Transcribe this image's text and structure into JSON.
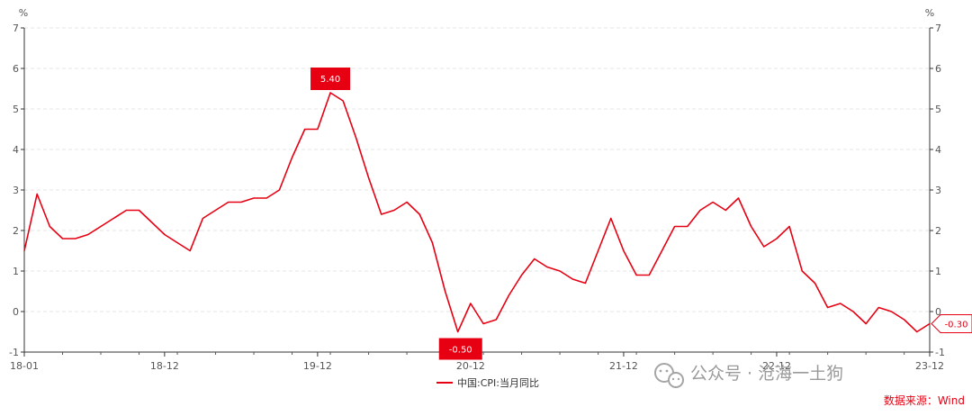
{
  "chart_data": {
    "type": "line",
    "units_left": "%",
    "units_right": "%",
    "ylim": [
      -1,
      7
    ],
    "yticks": [
      "-1",
      "0",
      "1",
      "2",
      "3",
      "4",
      "5",
      "6",
      "7"
    ],
    "x_tick_labels": [
      "18-01",
      "18-12",
      "19-12",
      "20-12",
      "21-12",
      "22-12",
      "23-12"
    ],
    "x_tick_months": [
      "2018-01",
      "2018-12",
      "2019-12",
      "2020-12",
      "2021-12",
      "2022-12",
      "2023-12"
    ],
    "grid": true,
    "legend_position": "bottom-center",
    "series": [
      {
        "name": "中国:CPI:当月同比",
        "color": "#e60012",
        "x": [
          "2018-01",
          "2018-02",
          "2018-03",
          "2018-04",
          "2018-05",
          "2018-06",
          "2018-07",
          "2018-08",
          "2018-09",
          "2018-10",
          "2018-11",
          "2018-12",
          "2019-01",
          "2019-02",
          "2019-03",
          "2019-04",
          "2019-05",
          "2019-06",
          "2019-07",
          "2019-08",
          "2019-09",
          "2019-10",
          "2019-11",
          "2019-12",
          "2020-01",
          "2020-02",
          "2020-03",
          "2020-04",
          "2020-05",
          "2020-06",
          "2020-07",
          "2020-08",
          "2020-09",
          "2020-10",
          "2020-11",
          "2020-12",
          "2021-01",
          "2021-02",
          "2021-03",
          "2021-04",
          "2021-05",
          "2021-06",
          "2021-07",
          "2021-08",
          "2021-09",
          "2021-10",
          "2021-11",
          "2021-12",
          "2022-01",
          "2022-02",
          "2022-03",
          "2022-04",
          "2022-05",
          "2022-06",
          "2022-07",
          "2022-08",
          "2022-09",
          "2022-10",
          "2022-11",
          "2022-12",
          "2023-01",
          "2023-02",
          "2023-03",
          "2023-04",
          "2023-05",
          "2023-06",
          "2023-07",
          "2023-08",
          "2023-09",
          "2023-10",
          "2023-11",
          "2023-12"
        ],
        "values": [
          1.5,
          2.9,
          2.1,
          1.8,
          1.8,
          1.9,
          2.1,
          2.3,
          2.5,
          2.5,
          2.2,
          1.9,
          1.7,
          1.5,
          2.3,
          2.5,
          2.7,
          2.7,
          2.8,
          2.8,
          3.0,
          3.8,
          4.5,
          4.5,
          5.4,
          5.2,
          4.3,
          3.3,
          2.4,
          2.5,
          2.7,
          2.4,
          1.7,
          0.5,
          -0.5,
          0.2,
          -0.3,
          -0.2,
          0.4,
          0.9,
          1.3,
          1.1,
          1.0,
          0.8,
          0.7,
          1.5,
          2.3,
          1.5,
          0.9,
          0.9,
          1.5,
          2.1,
          2.1,
          2.5,
          2.7,
          2.5,
          2.8,
          2.1,
          1.6,
          1.8,
          2.1,
          1.0,
          0.7,
          0.1,
          0.2,
          0.0,
          -0.3,
          0.1,
          0.0,
          -0.2,
          -0.5,
          -0.3
        ]
      }
    ],
    "annotations": [
      {
        "x": "2020-01",
        "label": "5.40"
      },
      {
        "x": "2020-11",
        "label": "-0.50"
      },
      {
        "x": "2023-12",
        "label": "-0.30"
      }
    ]
  },
  "footer": {
    "watermark": "公众号 · 沧海一土狗",
    "source": "数据来源：Wind"
  }
}
